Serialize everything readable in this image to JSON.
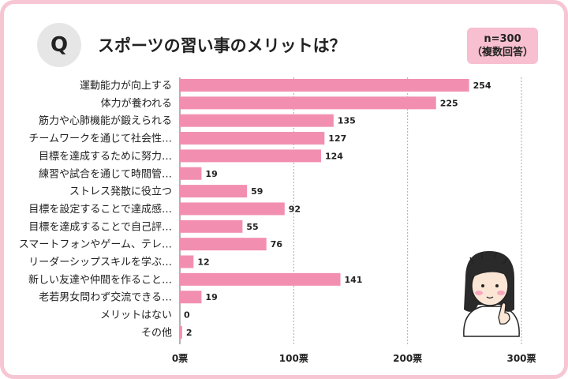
{
  "header": {
    "q_label": "Q",
    "title": "スポーツの習い事のメリットは？",
    "sample_size": "n=300",
    "note": "（複数回答）"
  },
  "colors": {
    "bar": "#f28fb0",
    "frame": "#f6c6d3",
    "badge": "#f7bfd0",
    "grid": "#aaaaaa"
  },
  "chart_data": {
    "type": "bar",
    "orientation": "horizontal",
    "title": "スポーツの習い事のメリットは？",
    "categories": [
      "運動能力が向上する",
      "体力が養われる",
      "筋力や心肺機能が鍛えられる",
      "チームワークを通じて社会性…",
      "目標を達成するために努力…",
      "練習や試合を通じて時間管…",
      "ストレス発散に役立つ",
      "目標を設定することで達成感…",
      "目標を達成することで自己評…",
      "スマートフォンやゲーム、テレ…",
      "リーダーシップスキルを学ぶ…",
      "新しい友達や仲間を作ること…",
      "老若男女問わず交流できる…",
      "メリットはない",
      "その他"
    ],
    "values": [
      254,
      225,
      135,
      127,
      124,
      19,
      59,
      92,
      55,
      76,
      12,
      141,
      19,
      0,
      2
    ],
    "xlim": [
      0,
      300
    ],
    "ticks": [
      0,
      100,
      200,
      300
    ],
    "tick_labels": [
      "0票",
      "100票",
      "200票",
      "300票"
    ],
    "grid": "vertical dashed"
  }
}
